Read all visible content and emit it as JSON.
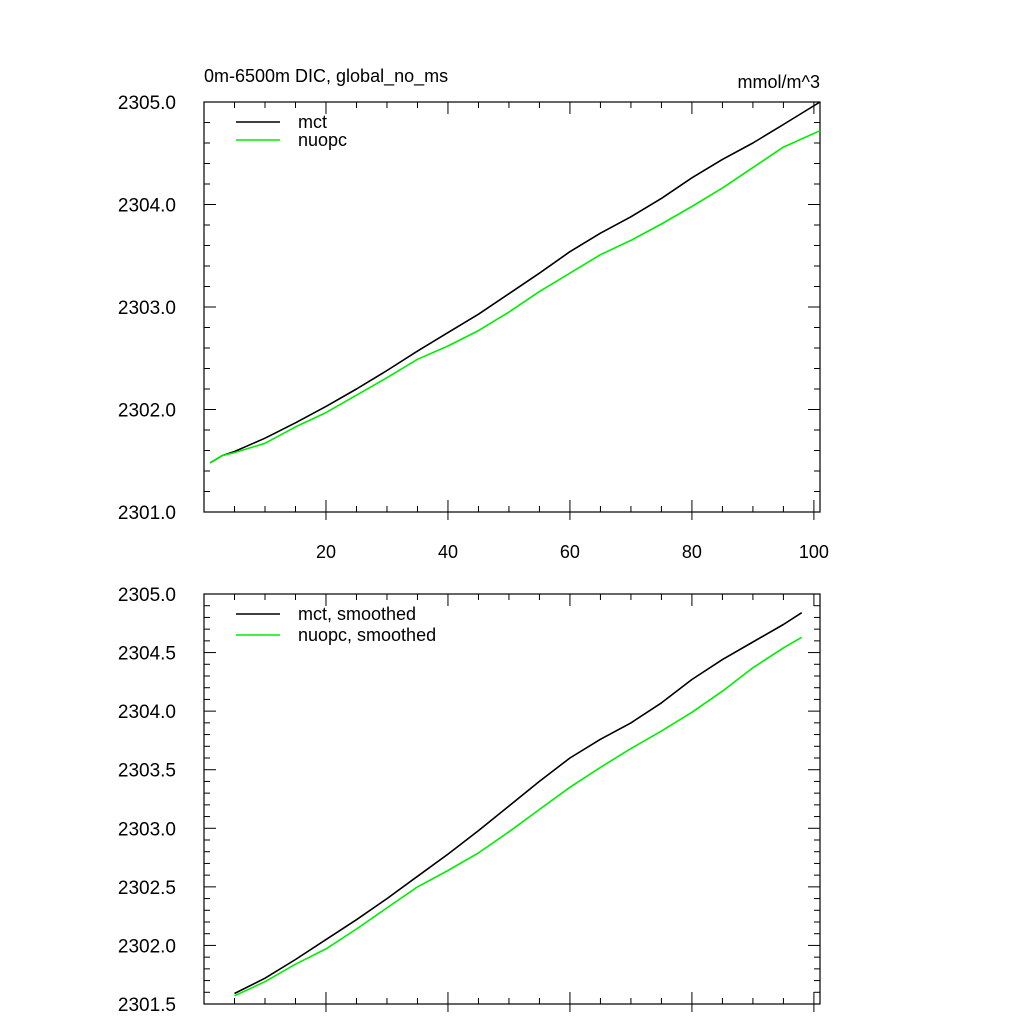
{
  "figure": {
    "title": "0m-6500m DIC, global_no_ms",
    "units": "mmol/m^3"
  },
  "colors": {
    "mct": "#000000",
    "nuopc": "#00ee00",
    "axis": "#000000"
  },
  "chart_data": [
    {
      "type": "line",
      "title": "0m-6500m DIC, global_no_ms",
      "units_label": "mmol/m^3",
      "xlim": [
        0,
        101
      ],
      "ylim": [
        2301.0,
        2305.0
      ],
      "x_ticks": [
        20,
        40,
        60,
        80,
        100
      ],
      "x_tick_labels": [
        "20",
        "40",
        "60",
        "80",
        "100"
      ],
      "y_ticks": [
        2301.0,
        2302.0,
        2303.0,
        2304.0,
        2305.0
      ],
      "y_tick_labels": [
        "2301.0",
        "2302.0",
        "2303.0",
        "2304.0",
        "2305.0"
      ],
      "legend_position": "top-left",
      "grid": false,
      "series": [
        {
          "name": "mct",
          "color": "#000000",
          "x": [
            1,
            3,
            5,
            10,
            15,
            20,
            25,
            30,
            35,
            40,
            45,
            50,
            55,
            60,
            65,
            70,
            75,
            80,
            85,
            90,
            95,
            101
          ],
          "y": [
            2301.48,
            2301.55,
            2301.59,
            2301.72,
            2301.87,
            2302.03,
            2302.2,
            2302.38,
            2302.57,
            2302.75,
            2302.93,
            2303.13,
            2303.33,
            2303.54,
            2303.72,
            2303.88,
            2304.06,
            2304.26,
            2304.44,
            2304.6,
            2304.78,
            2305.0
          ]
        },
        {
          "name": "nuopc",
          "color": "#00ee00",
          "x": [
            1,
            3,
            5,
            10,
            15,
            20,
            25,
            30,
            35,
            40,
            45,
            50,
            55,
            60,
            65,
            70,
            75,
            80,
            85,
            90,
            95,
            101
          ],
          "y": [
            2301.48,
            2301.55,
            2301.58,
            2301.67,
            2301.83,
            2301.97,
            2302.14,
            2302.31,
            2302.49,
            2302.62,
            2302.77,
            2302.95,
            2303.15,
            2303.33,
            2303.51,
            2303.65,
            2303.81,
            2303.98,
            2304.16,
            2304.36,
            2304.56,
            2304.72
          ]
        }
      ]
    },
    {
      "type": "line",
      "xlim": [
        0,
        101
      ],
      "ylim": [
        2301.5,
        2305.0
      ],
      "x_ticks": [
        20,
        40,
        60,
        80,
        100
      ],
      "y_ticks": [
        2301.5,
        2302.0,
        2302.5,
        2303.0,
        2303.5,
        2304.0,
        2304.5,
        2305.0
      ],
      "y_tick_labels": [
        "2301.5",
        "2302.0",
        "2302.5",
        "2303.0",
        "2303.5",
        "2304.0",
        "2304.5",
        "2305.0"
      ],
      "legend_position": "top-left",
      "grid": false,
      "series": [
        {
          "name": "mct, smoothed",
          "color": "#000000",
          "x": [
            5,
            10,
            15,
            20,
            25,
            30,
            35,
            40,
            45,
            50,
            55,
            60,
            65,
            70,
            75,
            80,
            85,
            90,
            95,
            98
          ],
          "y": [
            2301.59,
            2301.72,
            2301.88,
            2302.05,
            2302.22,
            2302.4,
            2302.59,
            2302.78,
            2302.98,
            2303.19,
            2303.4,
            2303.6,
            2303.76,
            2303.9,
            2304.07,
            2304.27,
            2304.44,
            2304.59,
            2304.74,
            2304.84
          ]
        },
        {
          "name": "nuopc, smoothed",
          "color": "#00ee00",
          "x": [
            5,
            10,
            15,
            20,
            25,
            30,
            35,
            40,
            45,
            50,
            55,
            60,
            65,
            70,
            75,
            80,
            85,
            90,
            95,
            98
          ],
          "y": [
            2301.57,
            2301.69,
            2301.84,
            2301.97,
            2302.14,
            2302.32,
            2302.5,
            2302.64,
            2302.79,
            2302.97,
            2303.16,
            2303.35,
            2303.52,
            2303.68,
            2303.83,
            2303.99,
            2304.17,
            2304.37,
            2304.54,
            2304.63
          ]
        }
      ]
    }
  ]
}
